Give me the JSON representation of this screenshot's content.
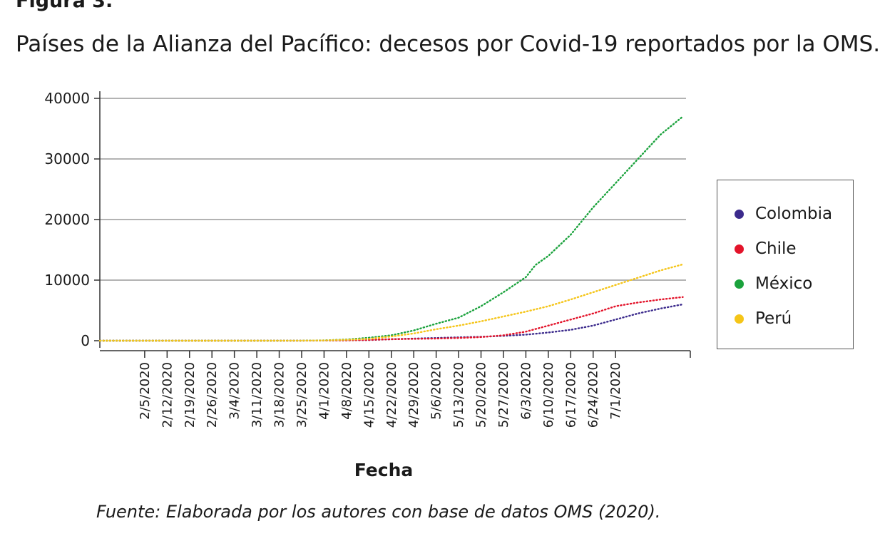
{
  "figure": {
    "label": "Figura 3.",
    "title": "Países de la Alianza del Pacífico: decesos por Covid-19 reportados por la OMS.",
    "source": "Fuente: Elaborada por los autores con base de datos OMS (2020)."
  },
  "chart_data": {
    "type": "line",
    "title": "",
    "xlabel": "Fecha",
    "ylabel": "",
    "ylim": [
      0,
      40000
    ],
    "yticks": [
      0,
      10000,
      20000,
      30000,
      40000
    ],
    "grid": true,
    "legend_position": "right",
    "line_style": "dotted",
    "x_tick_labels": [
      "2/5/2020",
      "2/12/2020",
      "2/19/2020",
      "2/26/2020",
      "3/4/2020",
      "3/11/2020",
      "3/18/2020",
      "3/25/2020",
      "4/1/2020",
      "4/8/2020",
      "4/15/2020",
      "4/22/2020",
      "4/29/2020",
      "5/6/2020",
      "5/13/2020",
      "5/20/2020",
      "5/27/2020",
      "6/3/2020",
      "6/10/2020",
      "6/17/2020",
      "6/24/2020",
      "7/1/2020"
    ],
    "x_range": [
      "1/22/2020",
      "7/23/2020"
    ],
    "series": [
      {
        "name": "Colombia",
        "color": "#3b2a8c",
        "points": [
          [
            "1/22/2020",
            0
          ],
          [
            "3/18/2020",
            0
          ],
          [
            "3/25/2020",
            10
          ],
          [
            "4/1/2020",
            30
          ],
          [
            "4/8/2020",
            60
          ],
          [
            "4/15/2020",
            110
          ],
          [
            "4/22/2020",
            250
          ],
          [
            "4/29/2020",
            350
          ],
          [
            "5/6/2020",
            450
          ],
          [
            "5/13/2020",
            550
          ],
          [
            "5/20/2020",
            650
          ],
          [
            "5/27/2020",
            800
          ],
          [
            "6/3/2020",
            1000
          ],
          [
            "6/10/2020",
            1350
          ],
          [
            "6/17/2020",
            1800
          ],
          [
            "6/24/2020",
            2500
          ],
          [
            "7/1/2020",
            3500
          ],
          [
            "7/8/2020",
            4500
          ],
          [
            "7/15/2020",
            5300
          ],
          [
            "7/22/2020",
            6000
          ]
        ]
      },
      {
        "name": "Chile",
        "color": "#e3132a",
        "points": [
          [
            "1/22/2020",
            0
          ],
          [
            "3/18/2020",
            0
          ],
          [
            "3/25/2020",
            5
          ],
          [
            "4/1/2020",
            20
          ],
          [
            "4/8/2020",
            60
          ],
          [
            "4/15/2020",
            130
          ],
          [
            "4/22/2020",
            250
          ],
          [
            "4/29/2020",
            300
          ],
          [
            "5/6/2020",
            350
          ],
          [
            "5/13/2020",
            450
          ],
          [
            "5/20/2020",
            600
          ],
          [
            "5/27/2020",
            900
          ],
          [
            "6/3/2020",
            1500
          ],
          [
            "6/10/2020",
            2500
          ],
          [
            "6/17/2020",
            3500
          ],
          [
            "6/24/2020",
            4500
          ],
          [
            "7/1/2020",
            5700
          ],
          [
            "7/8/2020",
            6300
          ],
          [
            "7/15/2020",
            6800
          ],
          [
            "7/22/2020",
            7200
          ]
        ]
      },
      {
        "name": "México",
        "color": "#1aa23c",
        "points": [
          [
            "1/22/2020",
            0
          ],
          [
            "3/18/2020",
            0
          ],
          [
            "3/25/2020",
            10
          ],
          [
            "4/1/2020",
            60
          ],
          [
            "4/8/2020",
            200
          ],
          [
            "4/15/2020",
            500
          ],
          [
            "4/22/2020",
            900
          ],
          [
            "4/29/2020",
            1700
          ],
          [
            "5/6/2020",
            2800
          ],
          [
            "5/13/2020",
            3800
          ],
          [
            "5/20/2020",
            5700
          ],
          [
            "5/27/2020",
            8000
          ],
          [
            "6/3/2020",
            10500
          ],
          [
            "6/6/2020",
            12500
          ],
          [
            "6/10/2020",
            14000
          ],
          [
            "6/17/2020",
            17500
          ],
          [
            "6/24/2020",
            22000
          ],
          [
            "7/1/2020",
            26000
          ],
          [
            "7/8/2020",
            30000
          ],
          [
            "7/15/2020",
            34000
          ],
          [
            "7/22/2020",
            37000
          ]
        ]
      },
      {
        "name": "Perú",
        "color": "#f5c518",
        "points": [
          [
            "1/22/2020",
            0
          ],
          [
            "3/18/2020",
            0
          ],
          [
            "3/25/2020",
            10
          ],
          [
            "4/1/2020",
            50
          ],
          [
            "4/8/2020",
            150
          ],
          [
            "4/15/2020",
            300
          ],
          [
            "4/22/2020",
            700
          ],
          [
            "4/29/2020",
            1200
          ],
          [
            "5/6/2020",
            1900
          ],
          [
            "5/13/2020",
            2500
          ],
          [
            "5/20/2020",
            3200
          ],
          [
            "5/27/2020",
            4000
          ],
          [
            "6/3/2020",
            4800
          ],
          [
            "6/10/2020",
            5700
          ],
          [
            "6/17/2020",
            6800
          ],
          [
            "6/24/2020",
            8000
          ],
          [
            "7/1/2020",
            9200
          ],
          [
            "7/8/2020",
            10400
          ],
          [
            "7/15/2020",
            11600
          ],
          [
            "7/22/2020",
            12600
          ]
        ]
      }
    ]
  }
}
